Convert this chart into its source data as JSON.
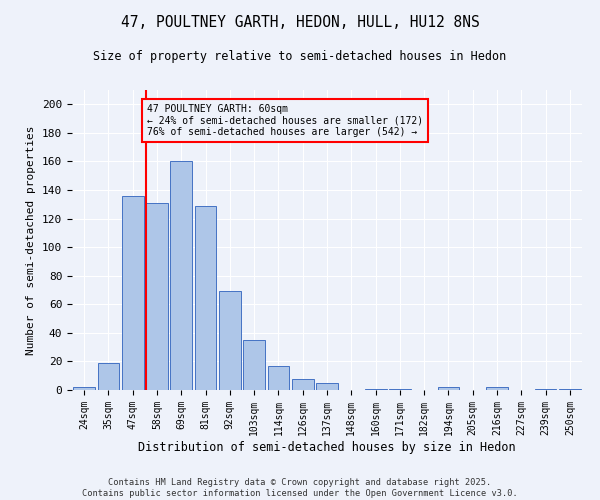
{
  "title1": "47, POULTNEY GARTH, HEDON, HULL, HU12 8NS",
  "title2": "Size of property relative to semi-detached houses in Hedon",
  "xlabel": "Distribution of semi-detached houses by size in Hedon",
  "ylabel": "Number of semi-detached properties",
  "categories": [
    "24sqm",
    "35sqm",
    "47sqm",
    "58sqm",
    "69sqm",
    "81sqm",
    "92sqm",
    "103sqm",
    "114sqm",
    "126sqm",
    "137sqm",
    "148sqm",
    "160sqm",
    "171sqm",
    "182sqm",
    "194sqm",
    "205sqm",
    "216sqm",
    "227sqm",
    "239sqm",
    "250sqm"
  ],
  "values": [
    2,
    19,
    136,
    131,
    160,
    129,
    69,
    35,
    17,
    8,
    5,
    0,
    1,
    1,
    0,
    2,
    0,
    2,
    0,
    1,
    1
  ],
  "bar_color": "#aec6e8",
  "bar_edge_color": "#4472c4",
  "vline_color": "red",
  "annotation_title": "47 POULTNEY GARTH: 60sqm",
  "annotation_line1": "← 24% of semi-detached houses are smaller (172)",
  "annotation_line2": "76% of semi-detached houses are larger (542) →",
  "annotation_box_color": "red",
  "ylim": [
    0,
    210
  ],
  "yticks": [
    0,
    20,
    40,
    60,
    80,
    100,
    120,
    140,
    160,
    180,
    200
  ],
  "footer1": "Contains HM Land Registry data © Crown copyright and database right 2025.",
  "footer2": "Contains public sector information licensed under the Open Government Licence v3.0.",
  "bg_color": "#eef2fa"
}
